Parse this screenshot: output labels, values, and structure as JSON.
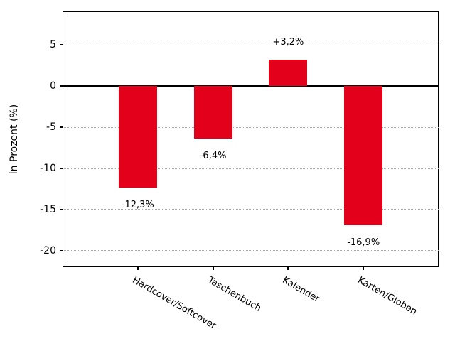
{
  "chart_data": {
    "type": "bar",
    "categories": [
      "Hardcover/Softcover",
      "Taschenbuch",
      "Kalender",
      "Karten/Globen"
    ],
    "values": [
      -12.3,
      -6.4,
      3.2,
      -16.9
    ],
    "value_labels": [
      "-12,3%",
      "-6,4%",
      "+3,2%",
      "-16,9%"
    ],
    "title": "",
    "xlabel": "",
    "ylabel": "in Prozent (%)",
    "ylim": [
      -22,
      9.1
    ],
    "yticks": [
      5,
      0,
      -5,
      -10,
      -15,
      -20
    ],
    "ytick_labels": [
      "5",
      "0",
      "-5",
      "-10",
      "-15",
      "-20"
    ],
    "grid": "horizontal dotted lines at yticks except zero",
    "zero_line": "solid black",
    "legend_position": "none",
    "colors": {
      "bar": "#e2001a",
      "grid": "#aaaaaa",
      "axis": "#000000",
      "background": "#ffffff",
      "text": "#000000"
    }
  }
}
